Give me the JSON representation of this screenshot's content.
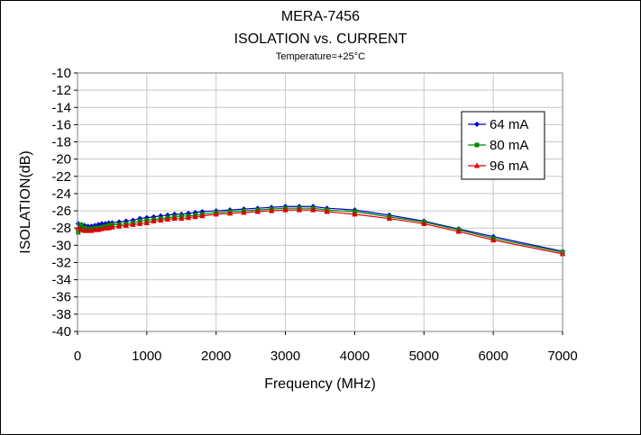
{
  "chart_data": {
    "type": "line",
    "title": "MERA-7456",
    "subtitle": "ISOLATION vs. CURRENT",
    "condition": "Temperature=+25°C",
    "xlabel": "Frequency (MHz)",
    "ylabel": "ISOLATION(dB)",
    "xlim": [
      0,
      7000
    ],
    "ylim": [
      -40,
      -10
    ],
    "x_ticks": [
      "0",
      "1000",
      "2000",
      "3000",
      "4000",
      "5000",
      "6000",
      "7000"
    ],
    "y_ticks": [
      "-10",
      "-12",
      "-14",
      "-16",
      "-18",
      "-20",
      "-22",
      "-24",
      "-26",
      "-28",
      "-30",
      "-32",
      "-34",
      "-36",
      "-38",
      "-40"
    ],
    "grid": true,
    "legend_position": "right",
    "x": [
      10,
      50,
      100,
      150,
      200,
      250,
      300,
      350,
      400,
      450,
      500,
      600,
      700,
      800,
      900,
      1000,
      1100,
      1200,
      1300,
      1400,
      1500,
      1600,
      1700,
      1800,
      2000,
      2200,
      2400,
      2600,
      2800,
      3000,
      3200,
      3400,
      3600,
      4000,
      4500,
      5000,
      5500,
      6000,
      7000
    ],
    "series": [
      {
        "name": "64 mA",
        "color": "#0000cc",
        "marker": "diamond",
        "values": [
          -27.5,
          -27.8,
          -27.7,
          -27.8,
          -27.8,
          -27.7,
          -27.6,
          -27.5,
          -27.5,
          -27.4,
          -27.4,
          -27.3,
          -27.2,
          -27.1,
          -26.9,
          -26.8,
          -26.7,
          -26.6,
          -26.5,
          -26.4,
          -26.4,
          -26.3,
          -26.2,
          -26.1,
          -26.0,
          -25.9,
          -25.8,
          -25.7,
          -25.6,
          -25.5,
          -25.5,
          -25.5,
          -25.7,
          -25.9,
          -26.5,
          -27.2,
          -28.1,
          -29.0,
          -30.7
        ]
      },
      {
        "name": "80 mA",
        "color": "#008800",
        "marker": "square",
        "values": [
          -28.5,
          -27.6,
          -28.0,
          -28.1,
          -28.1,
          -28.0,
          -28.0,
          -27.9,
          -27.8,
          -27.7,
          -27.6,
          -27.6,
          -27.5,
          -27.4,
          -27.2,
          -27.1,
          -27.0,
          -26.9,
          -26.8,
          -26.7,
          -26.6,
          -26.6,
          -26.5,
          -26.4,
          -26.2,
          -26.1,
          -26.0,
          -25.9,
          -25.8,
          -25.7,
          -25.7,
          -25.7,
          -25.9,
          -26.1,
          -26.7,
          -27.3,
          -28.2,
          -29.2,
          -30.8
        ]
      },
      {
        "name": "96 mA",
        "color": "#dd0000",
        "marker": "triangle",
        "values": [
          -28.0,
          -28.2,
          -28.3,
          -28.3,
          -28.3,
          -28.2,
          -28.2,
          -28.1,
          -28.0,
          -28.0,
          -27.9,
          -27.8,
          -27.7,
          -27.6,
          -27.5,
          -27.4,
          -27.2,
          -27.1,
          -27.0,
          -26.9,
          -26.9,
          -26.8,
          -26.7,
          -26.6,
          -26.4,
          -26.3,
          -26.2,
          -26.1,
          -26.0,
          -25.9,
          -25.9,
          -25.9,
          -26.1,
          -26.4,
          -26.9,
          -27.5,
          -28.4,
          -29.4,
          -31.0
        ]
      }
    ]
  }
}
